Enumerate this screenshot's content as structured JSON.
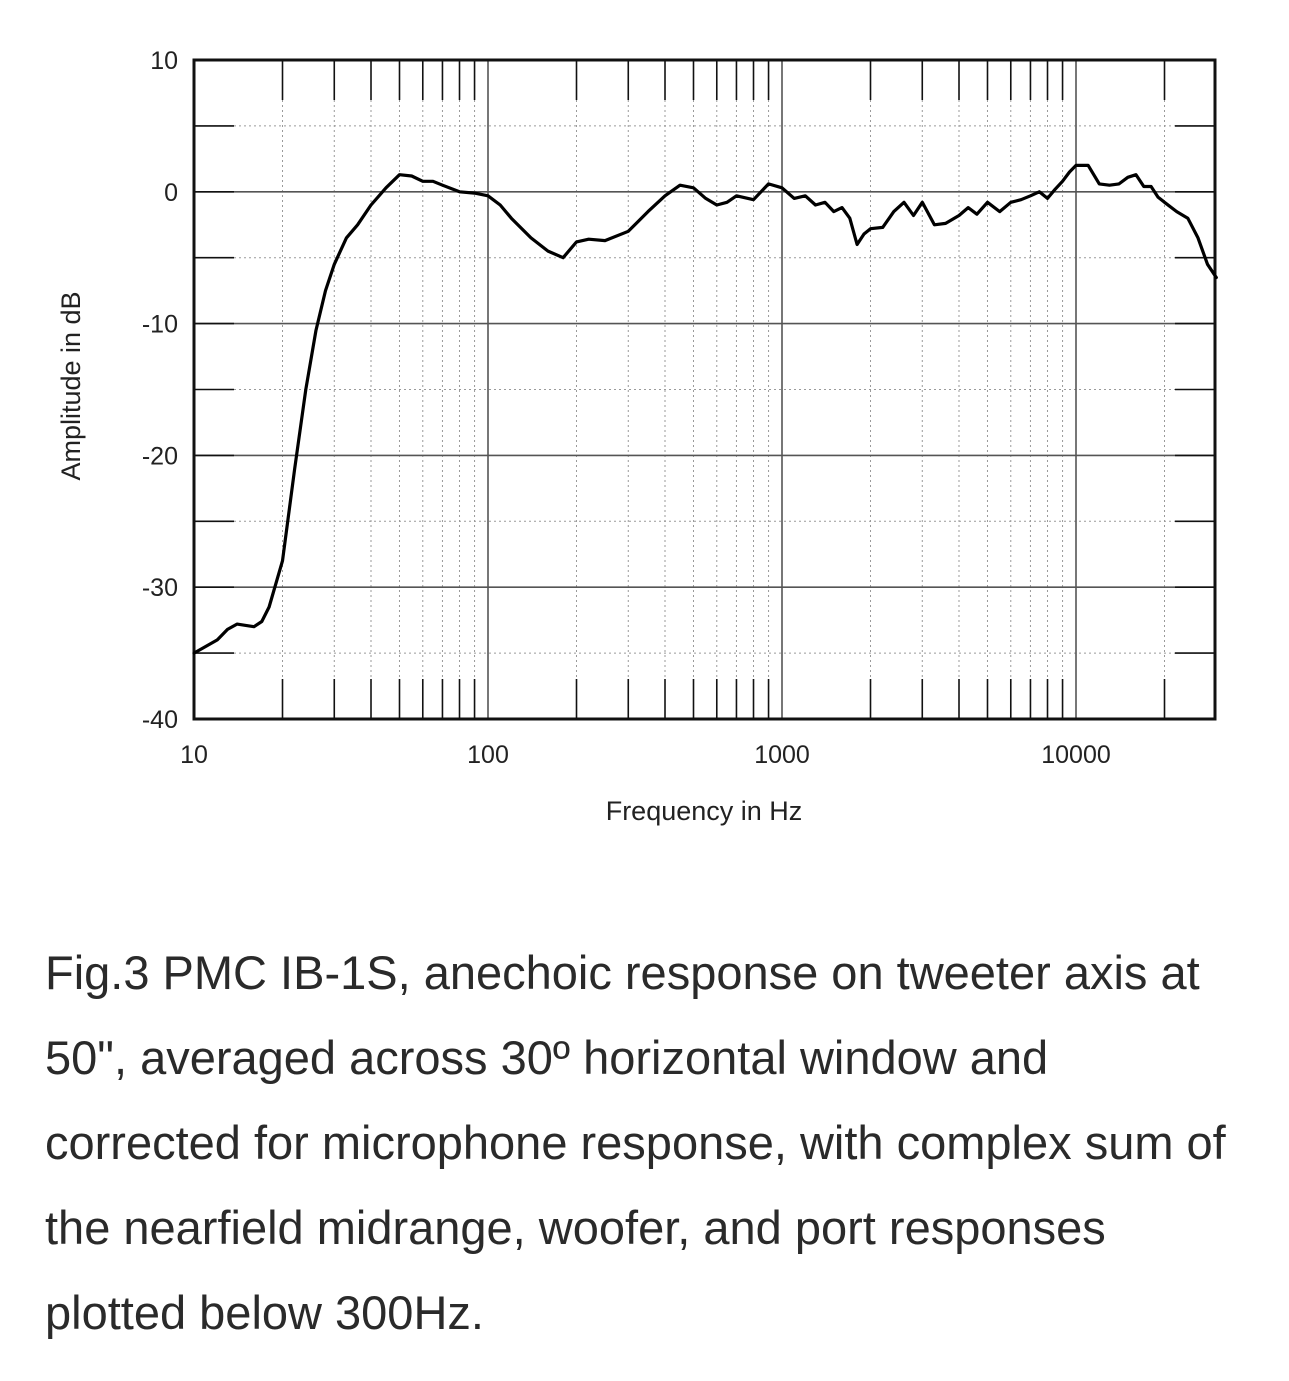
{
  "chart_data": {
    "type": "line",
    "title": "",
    "xlabel": "Frequency in Hz",
    "ylabel": "Amplitude in dB",
    "xscale": "log",
    "xlim": [
      10,
      30000
    ],
    "ylim": [
      -40,
      10
    ],
    "x_tick_labels": [
      "10",
      "100",
      "1000",
      "10000"
    ],
    "x_tick_values": [
      10,
      100,
      1000,
      10000
    ],
    "y_tick_labels": [
      "10",
      "0",
      "-10",
      "-20",
      "-30",
      "-40"
    ],
    "y_tick_values": [
      10,
      0,
      -10,
      -20,
      -30,
      -40
    ],
    "grid": true,
    "series": [
      {
        "name": "anechoic response",
        "x": [
          10,
          12,
          13,
          14,
          15,
          16,
          17,
          18,
          20,
          22,
          24,
          26,
          28,
          30,
          33,
          36,
          40,
          45,
          50,
          55,
          60,
          65,
          70,
          80,
          90,
          100,
          110,
          120,
          140,
          160,
          180,
          200,
          220,
          250,
          300,
          350,
          400,
          450,
          500,
          550,
          600,
          650,
          700,
          800,
          900,
          1000,
          1100,
          1200,
          1300,
          1400,
          1500,
          1600,
          1700,
          1800,
          1900,
          2000,
          2200,
          2400,
          2600,
          2800,
          3000,
          3300,
          3600,
          4000,
          4300,
          4600,
          5000,
          5500,
          6000,
          6500,
          7000,
          7500,
          8000,
          8500,
          9000,
          9500,
          10000,
          11000,
          12000,
          13000,
          14000,
          15000,
          16000,
          17000,
          18000,
          19000,
          20000,
          22000,
          24000,
          26000,
          28000,
          30000
        ],
        "y": [
          -35,
          -34,
          -33.2,
          -32.8,
          -32.9,
          -33,
          -32.6,
          -31.5,
          -28,
          -21,
          -15,
          -10.5,
          -7.5,
          -5.5,
          -3.5,
          -2.5,
          -1,
          0.3,
          1.3,
          1.2,
          0.8,
          0.8,
          0.5,
          0,
          -0.1,
          -0.3,
          -1,
          -2,
          -3.5,
          -4.5,
          -5,
          -3.8,
          -3.6,
          -3.7,
          -3,
          -1.5,
          -0.3,
          0.5,
          0.3,
          -0.5,
          -1,
          -0.8,
          -0.3,
          -0.6,
          0.6,
          0.3,
          -0.5,
          -0.3,
          -1,
          -0.8,
          -1.5,
          -1.2,
          -2,
          -4,
          -3.2,
          -2.8,
          -2.7,
          -1.5,
          -0.8,
          -1.8,
          -0.8,
          -2.5,
          -2.4,
          -1.8,
          -1.2,
          -1.7,
          -0.8,
          -1.5,
          -0.8,
          -0.6,
          -0.3,
          0,
          -0.5,
          0.2,
          0.8,
          1.5,
          2,
          2,
          0.6,
          0.5,
          0.6,
          1.1,
          1.3,
          0.4,
          0.4,
          -0.4,
          -0.8,
          -1.5,
          -2,
          -3.5,
          -5.5,
          -6.5
        ]
      }
    ]
  },
  "caption": "Fig.3 PMC IB-1S, anechoic response on tweeter axis at 50\", averaged across 30º horizontal window and corrected for microphone response, with complex sum of the nearfield midrange, woofer, and port responses plotted below 300Hz."
}
